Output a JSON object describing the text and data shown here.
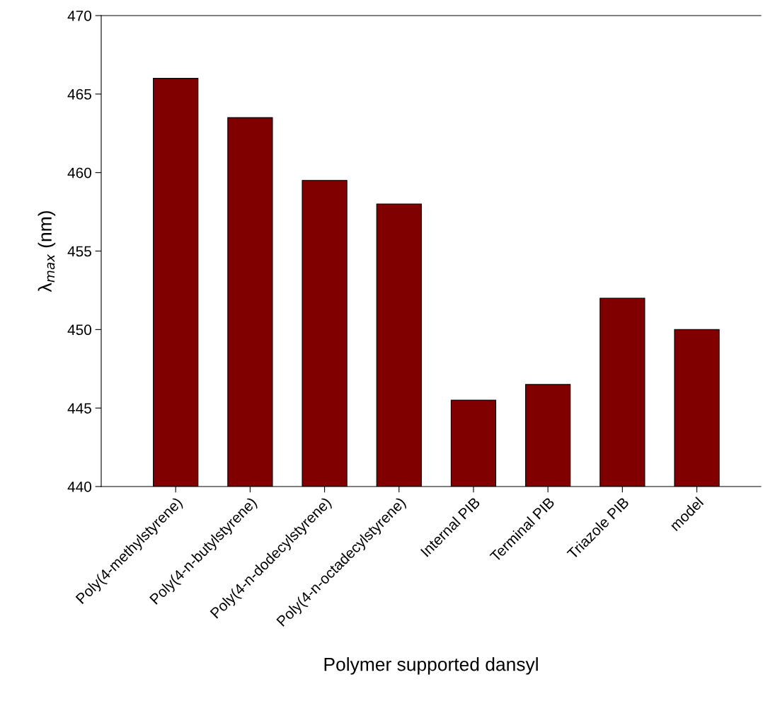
{
  "chart_data": {
    "type": "bar",
    "xlabel": "Polymer supported dansyl",
    "ylabel": "λ$_{max}$ (nm)",
    "categories": [
      "Poly(4-methylstyrene)",
      "Poly(4-n-butylstyrene)",
      "Poly(4-n-dodecylstyrene)",
      "Poly(4-n-octadecylstyrene)",
      "Internal PIB",
      "Terminal PIB",
      "Triazole PIB",
      "model"
    ],
    "values": [
      466,
      463.5,
      459.5,
      458,
      445.5,
      446.5,
      452,
      450
    ],
    "color": "#800000",
    "ylim": [
      440,
      470
    ],
    "yticks": [
      440,
      445,
      450,
      455,
      460,
      465,
      470
    ],
    "grid": false,
    "legend": false
  }
}
